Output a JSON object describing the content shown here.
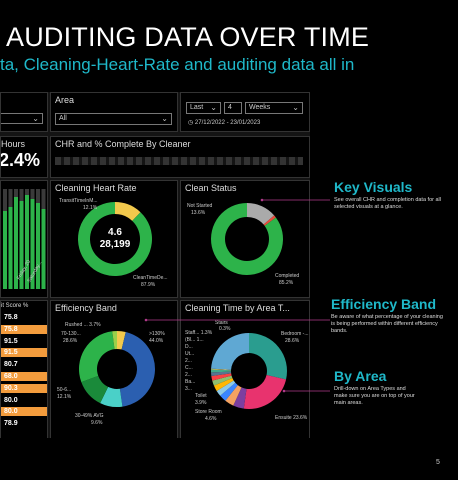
{
  "slide": {
    "title": "AUDITING DATA OVER TIME",
    "subtitle": "ta, Cleaning-Heart-Rate and auditing data all in",
    "page_number": "5"
  },
  "dashboard": {
    "filters": {
      "area_label": "Area",
      "area_value": "All",
      "period_mode": "Last",
      "period_count": "4",
      "period_unit": "Weeks",
      "date_range": "27/12/2022 - 23/01/2023"
    },
    "hours": {
      "label": "Hours",
      "value": "2.4%"
    },
    "chr_complete": {
      "title": "CHR and % Complete By Cleaner"
    },
    "cleaning_heart_rate": {
      "title": "Cleaning Heart Rate",
      "center_top": "4.6",
      "center_bottom": "28,199",
      "label_top": "TransitTimeInM...",
      "label_top_pct": "12.1%",
      "label_bottom": "CleanTimeDe...",
      "label_bottom_pct": "87.9%",
      "chart_data": {
        "type": "pie",
        "segments": [
          {
            "name": "TransitTimeInM...",
            "value": 12.1,
            "color": "#f2c94c"
          },
          {
            "name": "CleanTimeDe...",
            "value": 87.9,
            "color": "#2db34a"
          }
        ]
      }
    },
    "clean_status": {
      "title": "Clean Status",
      "label_top": "Not Started",
      "label_top_pct": "13.6%",
      "label_bottom": "Completed",
      "label_bottom_pct": "85.2%",
      "chart_data": {
        "type": "pie",
        "segments": [
          {
            "name": "Not Started",
            "value": 13.6,
            "color": "#aaaaaa"
          },
          {
            "name": "Other",
            "value": 1.2,
            "color": "#e74c3c"
          },
          {
            "name": "Completed",
            "value": 85.2,
            "color": "#2db34a"
          }
        ]
      }
    },
    "efficiency_band": {
      "title": "Efficiency Band",
      "labels": [
        {
          "text": "Rushed ... 3.7%"
        },
        {
          "text": "70-130..."
        },
        {
          "text": "28.6%"
        },
        {
          "text": ">130%"
        },
        {
          "text": "44.0%"
        },
        {
          "text": "50-6..."
        },
        {
          "text": "12.1%"
        },
        {
          "text": "30-49% AVG"
        },
        {
          "text": "9.6%"
        }
      ],
      "chart_data": {
        "type": "pie",
        "segments": [
          {
            "name": "Rushed",
            "value": 3.7,
            "color": "#f2c94c"
          },
          {
            "name": ">130%",
            "value": 44.0,
            "color": "#2b5fb0"
          },
          {
            "name": "30-49% AVG",
            "value": 9.6,
            "color": "#4ad0c8"
          },
          {
            "name": "50-6...",
            "value": 12.1,
            "color": "#1a8a3a"
          },
          {
            "name": "70-130...",
            "value": 28.6,
            "color": "#2db34a"
          },
          {
            "name": "Other",
            "value": 2.0,
            "color": "#9ad04a"
          }
        ]
      }
    },
    "cleaning_time_by_area": {
      "title": "Cleaning Time by Area T...",
      "labels": [
        {
          "text": "Stairs"
        },
        {
          "text": "0.3%"
        },
        {
          "text": "Staff... 1.3%"
        },
        {
          "text": "(Bl... 1..."
        },
        {
          "text": "D..."
        },
        {
          "text": "Ut..."
        },
        {
          "text": "2..."
        },
        {
          "text": "C..."
        },
        {
          "text": "2..."
        },
        {
          "text": "Ba..."
        },
        {
          "text": "3..."
        },
        {
          "text": "Toilet"
        },
        {
          "text": "3.9%"
        },
        {
          "text": "Store Room"
        },
        {
          "text": "4.6%"
        },
        {
          "text": "Bedroom -..."
        },
        {
          "text": "28.6%"
        },
        {
          "text": "Ensuite 23.6%"
        }
      ],
      "chart_data": {
        "type": "pie",
        "segments": [
          {
            "name": "Bedroom",
            "value": 28.6,
            "color": "#2a9d8f"
          },
          {
            "name": "Ensuite",
            "value": 23.6,
            "color": "#e8336e"
          },
          {
            "name": "Store Room",
            "value": 4.6,
            "color": "#7b3fa0"
          },
          {
            "name": "Toilet",
            "value": 3.9,
            "color": "#f4a261"
          },
          {
            "name": "Ba...",
            "value": 3.0,
            "color": "#3a86ff"
          },
          {
            "name": "C...",
            "value": 2.5,
            "color": "#8ecae6"
          },
          {
            "name": "2...",
            "value": 2.5,
            "color": "#ffb703"
          },
          {
            "name": "Ut...",
            "value": 2.2,
            "color": "#90be6d"
          },
          {
            "name": "D...",
            "value": 2.0,
            "color": "#f94144"
          },
          {
            "name": "(Bl...",
            "value": 1.5,
            "color": "#577590"
          },
          {
            "name": "Staff...",
            "value": 1.3,
            "color": "#43aa8b"
          },
          {
            "name": "Stairs",
            "value": 0.3,
            "color": "#f9c74f"
          },
          {
            "name": "Other",
            "value": 24.0,
            "color": "#5fa8d3"
          }
        ]
      }
    },
    "score_table": {
      "header": "it Score %",
      "rows": [
        {
          "value": "75.8",
          "color": "#000000"
        },
        {
          "value": "75.8",
          "color": "#f39c3d"
        },
        {
          "value": "91.5",
          "color": "#000000"
        },
        {
          "value": "91.5",
          "color": "#f39c3d"
        },
        {
          "value": "80.7",
          "color": "#000000"
        },
        {
          "value": "68.0",
          "color": "#f39c3d"
        },
        {
          "value": "90.3",
          "color": "#f39c3d"
        },
        {
          "value": "80.0",
          "color": "#000000"
        },
        {
          "value": "80.0",
          "color": "#f39c3d"
        },
        {
          "value": "78.9",
          "color": "#000000"
        }
      ]
    },
    "bar_chart": {
      "labels": [
        "Friday, 20",
        "Saturday..."
      ],
      "chart_data": {
        "type": "bar",
        "values": [
          78,
          82,
          92,
          88,
          94,
          90,
          86,
          80
        ]
      }
    }
  },
  "features": [
    {
      "title": "Key Visuals",
      "desc": "See overall CHR and completion data for all selected visuals at a glance."
    },
    {
      "title": "Efficiency Band",
      "desc": "Be aware of what percentage of your cleaning is being performed within different efficiency bands."
    },
    {
      "title": "By Area",
      "desc": "Drill-down on Area Types and make sure you are on top of your main areas."
    }
  ]
}
